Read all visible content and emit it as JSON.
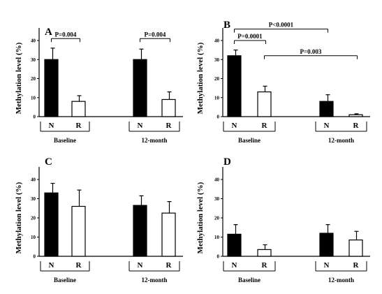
{
  "colors": {
    "N": "#000000",
    "R": "#ffffff",
    "stroke": "#000000"
  },
  "chart_data": [
    {
      "type": "bar",
      "panel": "A",
      "ylabel": "Methylation level (%)",
      "ylim": [
        0,
        40
      ],
      "yticks": [
        "0",
        "10",
        "20",
        "30",
        "40"
      ],
      "groups": [
        "Baseline",
        "12-month"
      ],
      "categories": [
        "N",
        "R",
        "N",
        "R"
      ],
      "values": [
        30,
        8,
        30,
        9
      ],
      "errors": [
        6,
        3,
        5.5,
        4
      ],
      "annotations": [
        {
          "label": "P=0.004",
          "from": 0,
          "to": 1,
          "level": 41
        },
        {
          "label": "P=0.004",
          "from": 2,
          "to": 3,
          "level": 41
        }
      ]
    },
    {
      "type": "bar",
      "panel": "B",
      "ylabel": "Methylation level (%)",
      "ylim": [
        0,
        40
      ],
      "yticks": [
        "0",
        "10",
        "20",
        "30",
        "40"
      ],
      "groups": [
        "Baseline",
        "12-month"
      ],
      "categories": [
        "N",
        "R",
        "N",
        "R"
      ],
      "values": [
        32,
        13,
        8,
        1
      ],
      "errors": [
        3,
        3,
        3.5,
        0.5
      ],
      "annotations": [
        {
          "label": "P<0.0001",
          "from": 0,
          "to": 2,
          "level": 46
        },
        {
          "label": "P=0.0001",
          "from": 0,
          "to": 1,
          "level": 40
        },
        {
          "label": "P=0.003",
          "from": 1,
          "to": 3,
          "level": 32
        }
      ]
    },
    {
      "type": "bar",
      "panel": "C",
      "ylabel": "Methylation level (%)",
      "ylim": [
        0,
        40
      ],
      "yticks": [
        "0",
        "10",
        "20",
        "30",
        "40"
      ],
      "groups": [
        "Baseline",
        "12-month"
      ],
      "categories": [
        "N",
        "R",
        "N",
        "R"
      ],
      "values": [
        33,
        26,
        26.5,
        22.5
      ],
      "errors": [
        5,
        8.5,
        5,
        6
      ],
      "annotations": []
    },
    {
      "type": "bar",
      "panel": "D",
      "ylabel": "Methylation level (%)",
      "ylim": [
        0,
        40
      ],
      "yticks": [
        "0",
        "10",
        "20",
        "30",
        "40"
      ],
      "groups": [
        "Baseline",
        "12-month"
      ],
      "categories": [
        "N",
        "R",
        "N",
        "R"
      ],
      "values": [
        11.5,
        3.5,
        12,
        8.5
      ],
      "errors": [
        5,
        2.5,
        4.5,
        4.5
      ],
      "annotations": []
    }
  ]
}
